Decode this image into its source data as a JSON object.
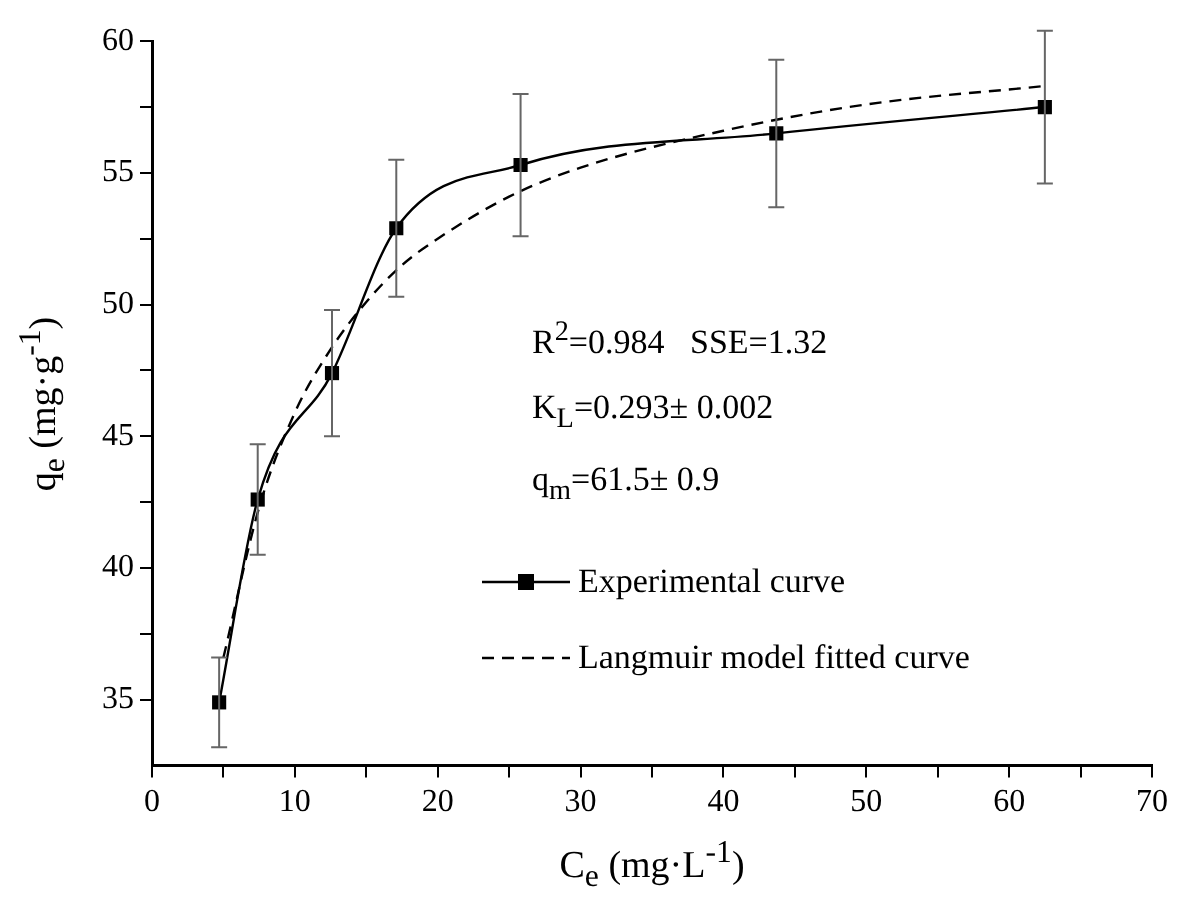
{
  "chart_data": {
    "type": "line",
    "xlabel": "C$_{e}$ (mg·L$^{-1}$)",
    "ylabel": "q$_{e}$ (mg·g$^{-1}$)",
    "xlim": [
      0,
      70
    ],
    "xticks": [
      0,
      {
        "value": 5,
        "label": null
      },
      10,
      {
        "value": 15,
        "label": null
      },
      20,
      {
        "value": 25,
        "label": null
      },
      30,
      {
        "value": 35,
        "label": null
      },
      40,
      {
        "value": 45,
        "label": null
      },
      50,
      {
        "value": 55,
        "label": null
      },
      60,
      {
        "value": 65,
        "label": null
      },
      70
    ],
    "ylim": [
      32.5,
      60
    ],
    "yticks": [
      35,
      {
        "value": 37.5,
        "label": null
      },
      40,
      {
        "value": 42.5,
        "label": null
      },
      45,
      {
        "value": 47.5,
        "label": null
      },
      50,
      {
        "value": 52.5,
        "label": null
      },
      55,
      {
        "value": 57.5,
        "label": null
      },
      60
    ],
    "grid": false,
    "legend": "right",
    "annotations": [
      "R$^{2}$=0.984   SSE=1.32",
      "K$_{L}$=0.293± 0.002",
      "q$_{m}$=61.5± 0.9"
    ],
    "series": [
      {
        "name": "Experimental curve",
        "color": "#000000",
        "marker": "square",
        "line_style": "solid",
        "x": [
          4.7,
          7.4,
          12.6,
          17.1,
          25.8,
          43.7,
          62.5
        ],
        "values": [
          34.9,
          42.6,
          47.4,
          52.9,
          55.3,
          56.5,
          57.5
        ],
        "errors": [
          1.7,
          2.1,
          2.4,
          2.6,
          2.7,
          2.8,
          2.9
        ]
      },
      {
        "name": "Langmuir model fitted curve",
        "color": "#000000",
        "marker": "none",
        "line_style": "dashed",
        "x": [
          5,
          7.5,
          10,
          12.5,
          15,
          17.5,
          20,
          25,
          30,
          40,
          50,
          62.5
        ],
        "values": [
          36.6,
          42.3,
          45.9,
          48.3,
          50.1,
          51.5,
          52.5,
          54.1,
          55.2,
          56.6,
          57.6,
          58.3
        ]
      }
    ]
  }
}
